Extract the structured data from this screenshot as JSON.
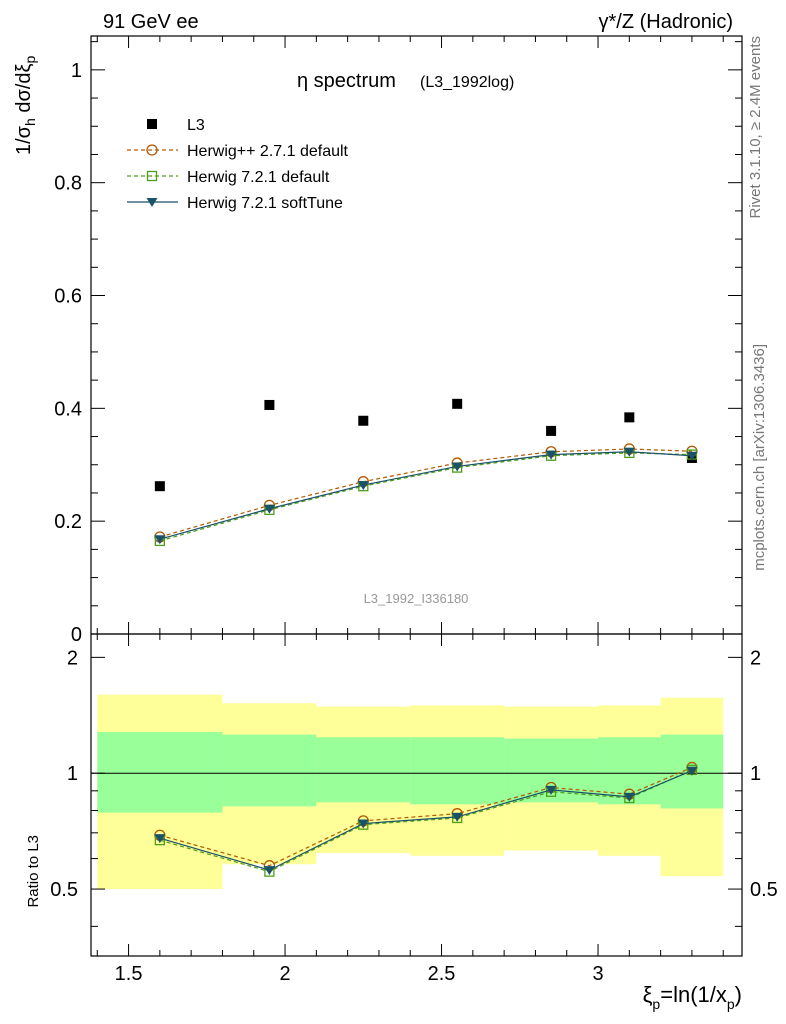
{
  "header": {
    "left": "91 GeV ee",
    "right": "γ*/Z (Hadronic)"
  },
  "side_labels": {
    "rivet": "Rivet 3.1.10, ≥ 2.4M events",
    "mcplots": "mcplots.cern.ch [arXiv:1306.3436]"
  },
  "chart_data": [
    {
      "type": "scatter",
      "panel": "main",
      "title": "η spectrum",
      "title_suffix": "(L3_1992log)",
      "watermark": "L3_1992_I336180",
      "ylabel": "1/σ_h dσ/dξ_p",
      "xlim": [
        1.38,
        3.46
      ],
      "ylim": [
        0,
        1.06
      ],
      "y_ticks": [
        {
          "v": 0,
          "label": "0"
        },
        {
          "v": 0.2,
          "label": "0.2"
        },
        {
          "v": 0.4,
          "label": "0.4"
        },
        {
          "v": 0.6,
          "label": "0.6"
        },
        {
          "v": 0.8,
          "label": "0.8"
        },
        {
          "v": 1.0,
          "label": "1"
        }
      ],
      "legend_position": "top-left",
      "x": [
        1.6,
        1.95,
        2.25,
        2.55,
        2.85,
        3.1,
        3.3
      ],
      "bins": [
        [
          1.4,
          1.8
        ],
        [
          1.8,
          2.1
        ],
        [
          2.1,
          2.4
        ],
        [
          2.4,
          2.7
        ],
        [
          2.7,
          3.0
        ],
        [
          3.0,
          3.2
        ],
        [
          3.2,
          3.4
        ]
      ],
      "series": [
        {
          "name": "L3",
          "style": "data",
          "color": "#000000",
          "values": [
            0.262,
            0.406,
            0.378,
            0.408,
            0.36,
            0.384,
            0.312
          ]
        },
        {
          "name": "Herwig++ 2.7.1 default",
          "style": "circle-dashed",
          "color": "#b35900",
          "values": [
            0.172,
            0.228,
            0.27,
            0.303,
            0.323,
            0.328,
            0.324
          ]
        },
        {
          "name": "Herwig 7.2.1 default",
          "style": "square-dashed",
          "color": "#4d9e1a",
          "values": [
            0.165,
            0.22,
            0.262,
            0.295,
            0.316,
            0.321,
            0.318
          ]
        },
        {
          "name": "Herwig 7.2.1 softTune",
          "style": "triangle-solid",
          "color": "#1a5268",
          "values": [
            0.168,
            0.222,
            0.264,
            0.297,
            0.318,
            0.323,
            0.316
          ]
        }
      ]
    },
    {
      "type": "line",
      "panel": "ratio",
      "ylabel": "Ratio to L3",
      "xlabel": "ξ_p=ln(1/x_p)",
      "xlim": [
        1.38,
        3.46
      ],
      "ylim": [
        0.335,
        2.3
      ],
      "y_ticks": [
        {
          "v": 0.5,
          "label": "0.5"
        },
        {
          "v": 1,
          "label": "1"
        },
        {
          "v": 2,
          "label": "2"
        }
      ],
      "x_ticks": [
        {
          "v": 1.5,
          "label": "1.5"
        },
        {
          "v": 2,
          "label": "2"
        },
        {
          "v": 2.5,
          "label": "2.5"
        },
        {
          "v": 3,
          "label": "3"
        }
      ],
      "reference_line": 1,
      "bands": {
        "yellow": [
          [
            0.5,
            1.6
          ],
          [
            0.58,
            1.52
          ],
          [
            0.62,
            1.49
          ],
          [
            0.61,
            1.5
          ],
          [
            0.63,
            1.49
          ],
          [
            0.61,
            1.5
          ],
          [
            0.54,
            1.57
          ]
        ],
        "green": [
          [
            0.79,
            1.28
          ],
          [
            0.82,
            1.26
          ],
          [
            0.84,
            1.24
          ],
          [
            0.83,
            1.24
          ],
          [
            0.84,
            1.23
          ],
          [
            0.83,
            1.24
          ],
          [
            0.81,
            1.26
          ]
        ]
      },
      "x": [
        1.6,
        1.95,
        2.25,
        2.55,
        2.85,
        3.1,
        3.3
      ],
      "series": [
        {
          "name": "Herwig++ 2.7.1 default",
          "style": "circle-dashed",
          "color": "#b35900",
          "values": [
            0.69,
            0.575,
            0.752,
            0.785,
            0.918,
            0.882,
            1.035
          ]
        },
        {
          "name": "Herwig 7.2.1 default",
          "style": "square-dashed",
          "color": "#4d9e1a",
          "values": [
            0.67,
            0.555,
            0.735,
            0.765,
            0.895,
            0.862,
            1.02
          ]
        },
        {
          "name": "Herwig 7.2.1 softTune",
          "style": "triangle-solid",
          "color": "#1a5268",
          "values": [
            0.678,
            0.56,
            0.74,
            0.77,
            0.905,
            0.868,
            1.015
          ]
        }
      ]
    }
  ]
}
